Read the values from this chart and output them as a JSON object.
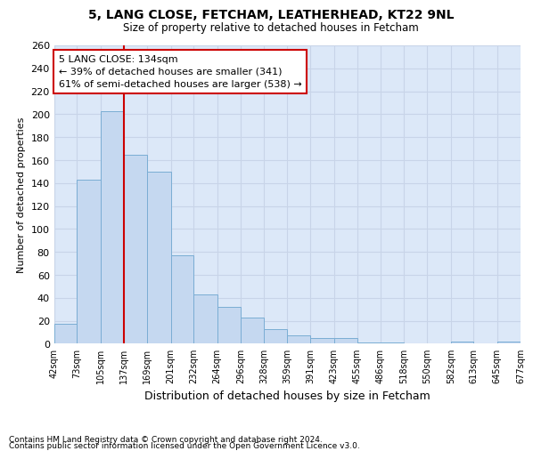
{
  "title1": "5, LANG CLOSE, FETCHAM, LEATHERHEAD, KT22 9NL",
  "title2": "Size of property relative to detached houses in Fetcham",
  "xlabel": "Distribution of detached houses by size in Fetcham",
  "ylabel": "Number of detached properties",
  "footnote1": "Contains HM Land Registry data © Crown copyright and database right 2024.",
  "footnote2": "Contains public sector information licensed under the Open Government Licence v3.0.",
  "annotation_title": "5 LANG CLOSE: 134sqm",
  "annotation_line1": "← 39% of detached houses are smaller (341)",
  "annotation_line2": "61% of semi-detached houses are larger (538) →",
  "bar_color": "#c5d8f0",
  "bar_edge_color": "#7aadd4",
  "vline_color": "#cc0000",
  "vline_x": 137,
  "bin_edges": [
    42,
    73,
    105,
    137,
    169,
    201,
    232,
    264,
    296,
    328,
    359,
    391,
    423,
    455,
    486,
    518,
    550,
    582,
    613,
    645,
    677
  ],
  "bar_heights": [
    17,
    143,
    203,
    165,
    150,
    77,
    43,
    32,
    23,
    13,
    7,
    5,
    5,
    1,
    1,
    0,
    0,
    2,
    0,
    2
  ],
  "ylim": [
    0,
    260
  ],
  "yticks": [
    0,
    20,
    40,
    60,
    80,
    100,
    120,
    140,
    160,
    180,
    200,
    220,
    240,
    260
  ],
  "grid_color": "#c8d4e8",
  "fig_bg_color": "#ffffff",
  "plot_bg_color": "#dce8f8",
  "annotation_box_facecolor": "#ffffff",
  "annotation_box_edgecolor": "#cc0000"
}
